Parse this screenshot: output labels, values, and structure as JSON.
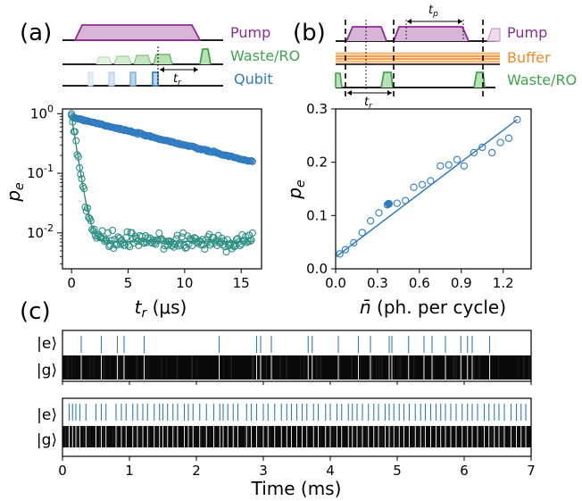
{
  "colors": {
    "pump": "#8b2d8f",
    "pump_fill": "#d7b4d8",
    "waste": "#3fa34d",
    "waste_fill": "#b9e0b6",
    "qubit": "#2f7bbf",
    "qubit_fill": "#bcd6ee",
    "buffer": "#f08a24",
    "teal": "#2f8f84",
    "black": "#000000"
  },
  "panel_labels": {
    "a": "(a)",
    "b": "(b)",
    "c": "(c)"
  },
  "panel_a": {
    "labels": {
      "pump": "Pump",
      "waste": "Waste/RO",
      "qubit": "Qubit"
    },
    "tr_label": "t_r"
  },
  "panel_b": {
    "labels": {
      "pump": "Pump",
      "buffer": "Buffer",
      "waste": "Waste/RO"
    },
    "tp_label": "t_p",
    "tr_label": "t_r"
  },
  "chart_data": [
    {
      "panel": "a-plot",
      "type": "scatter",
      "xlabel": "t_r (μs)",
      "ylabel": "p_e",
      "yscale": "log",
      "xlim": [
        -0.8,
        16.8
      ],
      "ylim": [
        0.0025,
        1.2
      ],
      "xticks": [
        0,
        5,
        10,
        15
      ],
      "yticks": [
        {
          "value": 1,
          "label": "10^0"
        },
        {
          "value": 0.1,
          "label": "10^-1"
        },
        {
          "value": 0.01,
          "label": "10^-2"
        }
      ],
      "series": [
        {
          "id": "blue",
          "color": "#2f7bbf",
          "model": "exp",
          "a": 0.88,
          "tau": 9.2,
          "x_start": 0.0,
          "x_end": 16.0,
          "n_points": 160,
          "noise": 0.015
        },
        {
          "id": "teal",
          "color": "#2f8f84",
          "model": "exp-floor",
          "a": 0.88,
          "tau": 0.36,
          "floor": 0.0072,
          "x_start": 0.0,
          "x_end": 16.0,
          "n_points": 160,
          "noise": 0.18
        }
      ]
    },
    {
      "panel": "b-plot",
      "type": "scatter",
      "xlabel": "n̄ (ph. per cycle)",
      "ylabel": "p_e",
      "xlim": [
        0.0,
        1.4
      ],
      "ylim": [
        0.0,
        0.3
      ],
      "xticks": [
        0.0,
        0.3,
        0.6,
        0.9,
        1.2
      ],
      "yticks": [
        0.0,
        0.1,
        0.2,
        0.3
      ],
      "fit_line": {
        "x": [
          0.0,
          1.3
        ],
        "y": [
          0.022,
          0.28
        ]
      },
      "points_x": [
        0.03,
        0.07,
        0.13,
        0.19,
        0.25,
        0.31,
        0.37,
        0.44,
        0.5,
        0.56,
        0.62,
        0.68,
        0.75,
        0.81,
        0.87,
        0.92,
        0.99,
        1.05,
        1.12,
        1.18,
        1.24,
        1.3
      ],
      "points_y": [
        0.028,
        0.036,
        0.049,
        0.068,
        0.09,
        0.105,
        0.12,
        0.123,
        0.128,
        0.153,
        0.158,
        0.165,
        0.193,
        0.195,
        0.205,
        0.193,
        0.218,
        0.228,
        0.218,
        0.237,
        0.245,
        0.28
      ],
      "highlighted_point": {
        "x": 0.38,
        "y": 0.122
      }
    },
    {
      "panel": "c",
      "type": "trace",
      "xlabel": "Time (ms)",
      "xlim": [
        0,
        7
      ],
      "xticks": [
        0,
        1,
        2,
        3,
        4,
        5,
        6,
        7
      ],
      "rows": [
        {
          "labels": [
            "|e⟩",
            "|g⟩"
          ],
          "events": [
            0.28,
            0.58,
            0.82,
            0.92,
            1.22,
            2.34,
            2.9,
            2.96,
            3.12,
            3.67,
            3.73,
            4.12,
            4.42,
            4.6,
            4.88,
            4.92,
            5.17,
            5.4,
            5.52,
            5.72,
            5.95,
            6.05,
            6.12,
            6.38
          ]
        },
        {
          "labels": [
            "|e⟩",
            "|g⟩"
          ],
          "events": [
            0.1,
            0.15,
            0.2,
            0.26,
            0.35,
            0.5,
            0.58,
            0.65,
            0.8,
            0.88,
            0.95,
            1.05,
            1.12,
            1.2,
            1.27,
            1.37,
            1.45,
            1.5,
            1.57,
            1.65,
            1.72,
            1.82,
            1.88,
            1.95,
            2.05,
            2.15,
            2.26,
            2.35,
            2.4,
            2.47,
            2.55,
            2.62,
            2.75,
            2.82,
            2.9,
            3.0,
            3.07,
            3.17,
            3.27,
            3.35,
            3.42,
            3.5,
            3.58,
            3.65,
            3.75,
            3.82,
            3.93,
            4.0,
            4.1,
            4.17,
            4.27,
            4.33,
            4.4,
            4.48,
            4.57,
            4.65,
            4.72,
            4.82,
            4.88,
            4.95,
            5.03,
            5.1,
            5.18,
            5.27,
            5.35,
            5.42,
            5.5,
            5.58,
            5.65,
            5.72,
            5.8,
            5.88,
            5.97,
            6.05,
            6.12,
            6.2,
            6.3,
            6.37,
            6.45,
            6.52,
            6.6,
            6.7,
            6.78,
            6.85,
            6.92
          ]
        }
      ]
    }
  ]
}
